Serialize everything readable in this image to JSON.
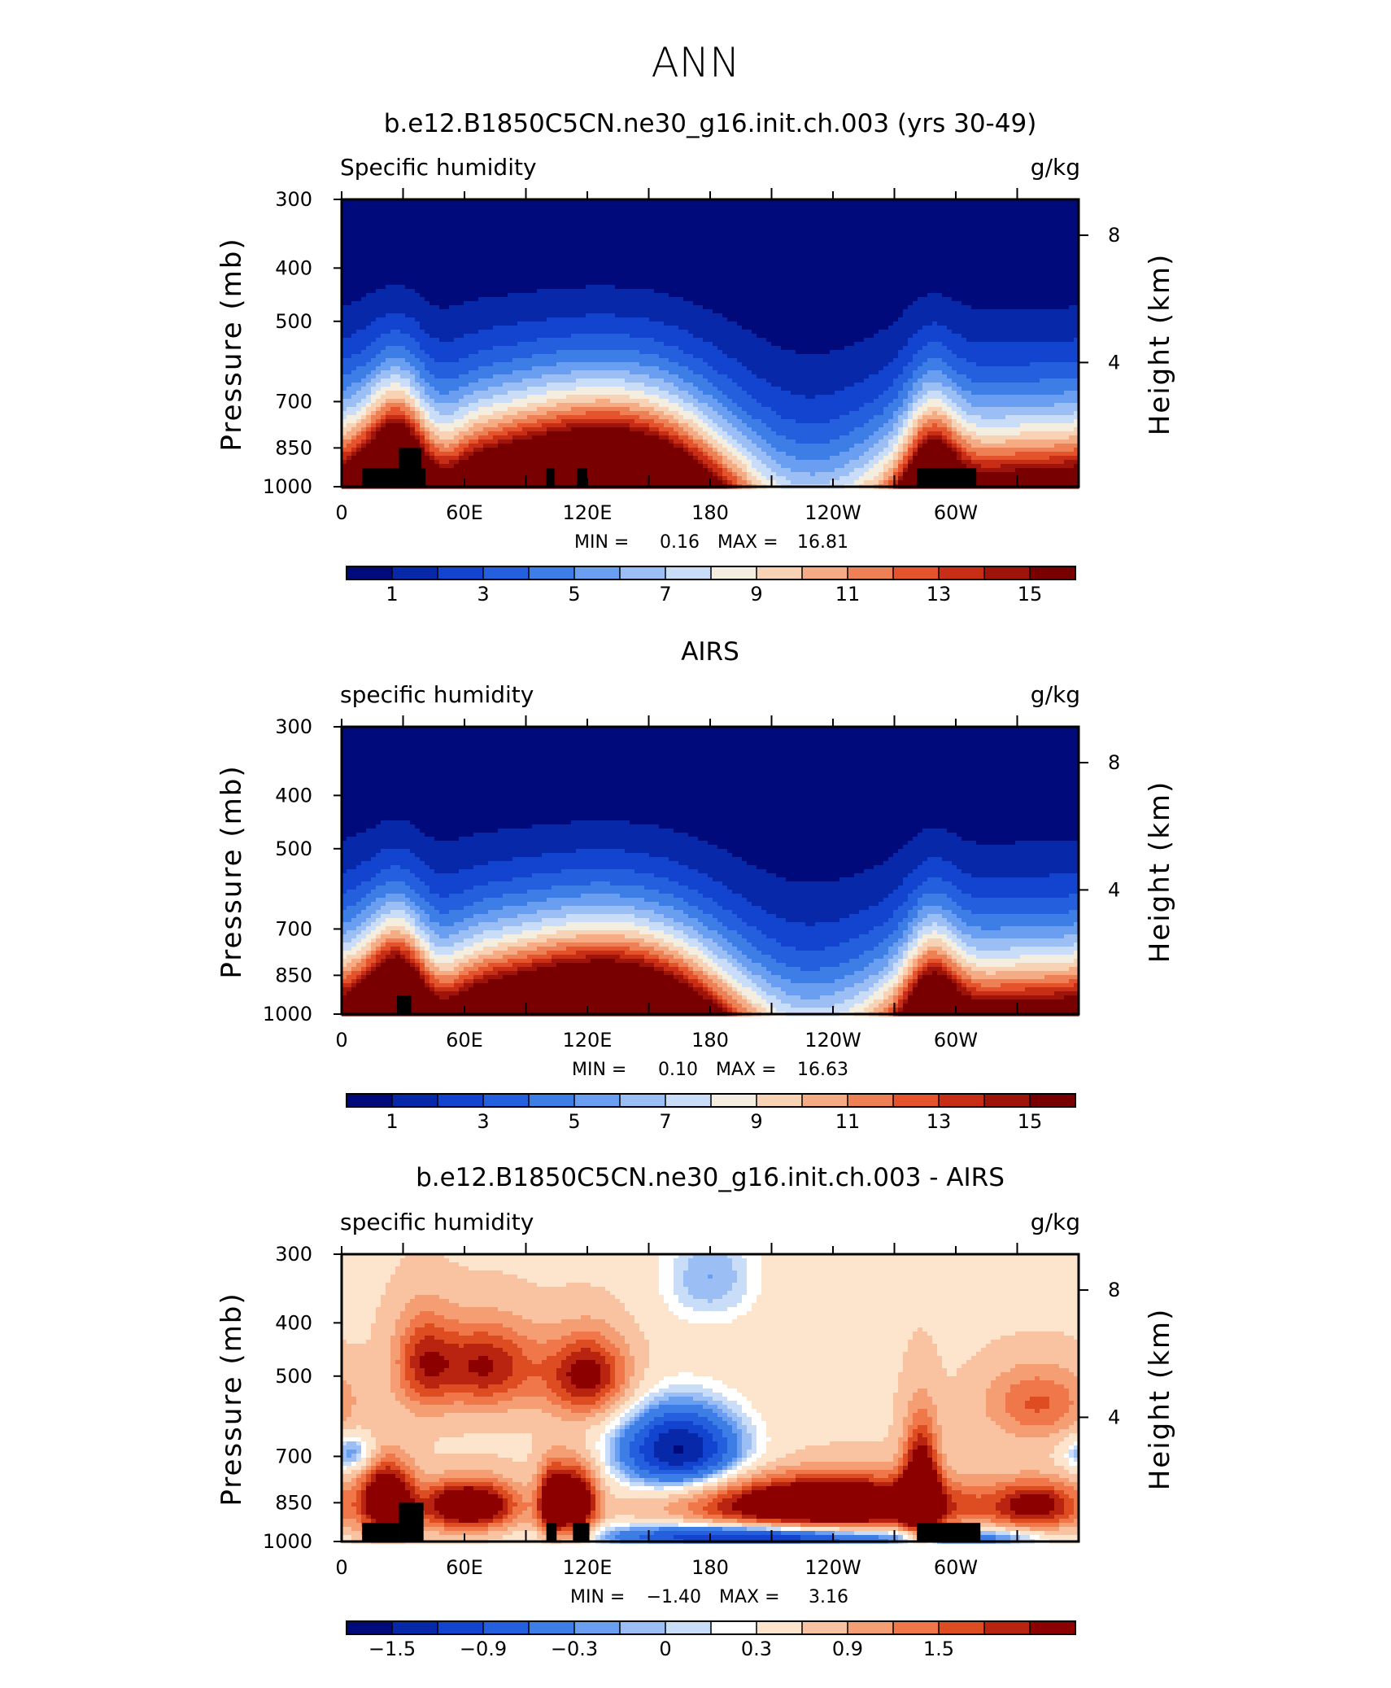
{
  "figure": {
    "title": "ANN"
  },
  "colors": {
    "absolute_palette": [
      "#000a7a",
      "#0728a8",
      "#1244cf",
      "#2460dd",
      "#3d7de6",
      "#6a9ef0",
      "#9bbff5",
      "#c9dcf8",
      "#f3eee0",
      "#f8d2b4",
      "#f5ab84",
      "#ee8055",
      "#e4532c",
      "#c82d15",
      "#9e130a",
      "#790000"
    ],
    "difference_palette": [
      "#000a7a",
      "#0728a8",
      "#1244cf",
      "#2460dd",
      "#3d7de6",
      "#6a9ef0",
      "#9bbff5",
      "#c9dcf8",
      "#ffffff",
      "#fde4cc",
      "#f9c2a0",
      "#f59e74",
      "#ef7749",
      "#de4d22",
      "#b82410",
      "#8c0000"
    ],
    "land_mask": "#000000"
  },
  "chart_data": [
    {
      "type": "heatmap",
      "title": "b.e12.B1850C5CN.ne30_g16.init.ch.003 (yrs 30-49)",
      "left_label": "Specific humidity",
      "right_label": "g/kg",
      "ylabel": "Pressure (mb)",
      "ylabel2": "Height (km)",
      "x_ticks": [
        "0",
        "60E",
        "120E",
        "180",
        "120W",
        "60W"
      ],
      "x_tick_values": [
        0,
        60,
        120,
        180,
        240,
        300
      ],
      "xlim": [
        0,
        360
      ],
      "y_ticks": [
        "300",
        "400",
        "500",
        "700",
        "850",
        "1000"
      ],
      "y_tick_values": [
        300,
        400,
        500,
        700,
        850,
        1000
      ],
      "ylim": [
        1000,
        300
      ],
      "y2_ticks": [
        "8",
        "4"
      ],
      "y2_tick_values": [
        8,
        4
      ],
      "stats": {
        "min_label": "MIN =",
        "min_value": "0.16",
        "max_label": "MAX =",
        "max_value": "16.81"
      },
      "colorbar": {
        "levels": [
          1,
          3,
          5,
          7,
          9,
          11,
          13,
          15
        ]
      },
      "field": {
        "kind": "absolute",
        "scale_top": 19.0,
        "exponent": 2.2,
        "moist_bump": 0.0,
        "lon_amplitude": 1.0
      },
      "surface_mask": [
        {
          "lon": [
            10,
            28
          ],
          "p": [
            925,
            1000
          ]
        },
        {
          "lon": [
            28,
            39
          ],
          "p": [
            850,
            1000
          ]
        },
        {
          "lon": [
            39,
            41
          ],
          "p": [
            925,
            1000
          ]
        },
        {
          "lon": [
            100,
            104
          ],
          "p": [
            925,
            1000
          ]
        },
        {
          "lon": [
            115,
            120
          ],
          "p": [
            925,
            1000
          ]
        },
        {
          "lon": [
            281,
            310
          ],
          "p": [
            925,
            1000
          ]
        }
      ]
    },
    {
      "type": "heatmap",
      "title": "AIRS",
      "left_label": "specific humidity",
      "right_label": "g/kg",
      "ylabel": "Pressure (mb)",
      "ylabel2": "Height (km)",
      "x_ticks": [
        "0",
        "60E",
        "120E",
        "180",
        "120W",
        "60W"
      ],
      "x_tick_values": [
        0,
        60,
        120,
        180,
        240,
        300
      ],
      "xlim": [
        0,
        360
      ],
      "y_ticks": [
        "300",
        "400",
        "500",
        "700",
        "850",
        "1000"
      ],
      "y_tick_values": [
        300,
        400,
        500,
        700,
        850,
        1000
      ],
      "ylim": [
        1000,
        300
      ],
      "y2_ticks": [
        "8",
        "4"
      ],
      "y2_tick_values": [
        8,
        4
      ],
      "stats": {
        "min_label": "MIN =",
        "min_value": "0.10",
        "max_label": "MAX =",
        "max_value": "16.63"
      },
      "colorbar": {
        "levels": [
          1,
          3,
          5,
          7,
          9,
          11,
          13,
          15
        ]
      },
      "field": {
        "kind": "absolute",
        "scale_top": 18.5,
        "exponent": 2.3,
        "moist_bump": 0.0,
        "lon_amplitude": 0.9
      },
      "surface_mask": [
        {
          "lon": [
            27,
            34
          ],
          "p": [
            925,
            1000
          ]
        }
      ]
    },
    {
      "type": "heatmap",
      "title": "b.e12.B1850C5CN.ne30_g16.init.ch.003 - AIRS",
      "left_label": "specific humidity",
      "right_label": "g/kg",
      "ylabel": "Pressure (mb)",
      "ylabel2": "Height (km)",
      "x_ticks": [
        "0",
        "60E",
        "120E",
        "180",
        "120W",
        "60W"
      ],
      "x_tick_values": [
        0,
        60,
        120,
        180,
        240,
        300
      ],
      "xlim": [
        0,
        360
      ],
      "y_ticks": [
        "300",
        "400",
        "500",
        "700",
        "850",
        "1000"
      ],
      "y_tick_values": [
        300,
        400,
        500,
        700,
        850,
        1000
      ],
      "ylim": [
        1000,
        300
      ],
      "y2_ticks": [
        "8",
        "4"
      ],
      "y2_tick_values": [
        8,
        4
      ],
      "stats": {
        "min_label": "MIN =",
        "min_value": "−1.40",
        "max_label": "MAX =",
        "max_value": "3.16"
      },
      "colorbar": {
        "levels": [
          "−1.5",
          "−0.9",
          "−0.3",
          "0",
          "0.3",
          "0.9",
          "1.5"
        ]
      },
      "field": {
        "kind": "difference"
      },
      "surface_mask": [
        {
          "lon": [
            10,
            28
          ],
          "p": [
            925,
            1000
          ]
        },
        {
          "lon": [
            28,
            40
          ],
          "p": [
            850,
            1000
          ]
        },
        {
          "lon": [
            100,
            105
          ],
          "p": [
            925,
            1000
          ]
        },
        {
          "lon": [
            113,
            121
          ],
          "p": [
            925,
            1000
          ]
        },
        {
          "lon": [
            281,
            312
          ],
          "p": [
            925,
            1000
          ]
        }
      ]
    }
  ]
}
